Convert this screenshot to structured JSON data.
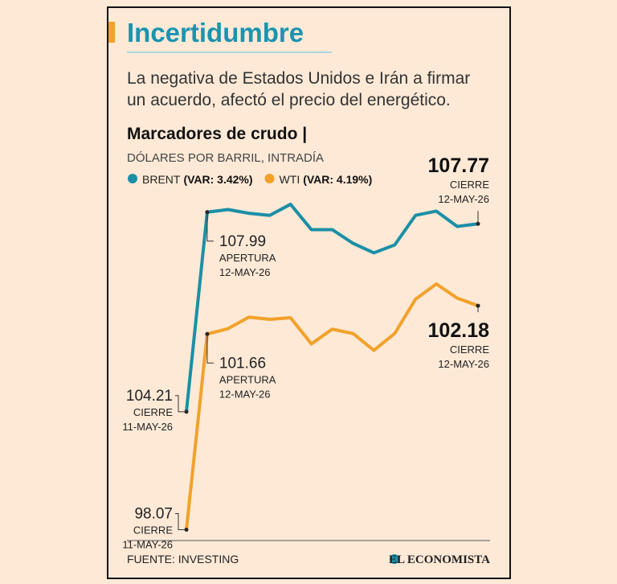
{
  "chart_data": {
    "type": "line",
    "title": "Incertidumbre",
    "subtitle": [
      "La negativa de Estados Unidos e Irán a firmar",
      "un acuerdo, afectó el precio del energético."
    ],
    "chart_title": "Marcadores de crudo |",
    "unit_label": "DÓLARES POR BARRIL, INTRADÍA",
    "categories": [
      null,
      null,
      null,
      null,
      null,
      null,
      null,
      null,
      null,
      null,
      null,
      null,
      null,
      null,
      null
    ],
    "series": [
      {
        "name": "BRENT",
        "var_label": "(VAR: 3.42%)",
        "color": "#1b8fa6",
        "values": [
          104.21,
          107.99,
          108.04,
          107.97,
          107.93,
          108.14,
          107.66,
          107.66,
          107.4,
          107.22,
          107.37,
          107.93,
          108.01,
          107.72,
          107.77
        ],
        "annotations": [
          {
            "note": "CIERRE",
            "date": "11-MAY-26"
          },
          {
            "note": "APERTURA",
            "date": "12-MAY-26"
          },
          {
            "note": "CIERRE",
            "date": "12-MAY-26"
          }
        ]
      },
      {
        "name": "WTI",
        "var_label": "(VAR: 4.19%)",
        "color": "#f2a12a",
        "axis": "y2",
        "values": [
          98.07,
          101.66,
          101.76,
          101.97,
          101.93,
          101.96,
          101.48,
          101.75,
          101.67,
          101.36,
          101.67,
          102.3,
          102.58,
          102.32,
          102.18
        ],
        "annotations": [
          {
            "note": "CIERRE",
            "date": "11-MAY-26"
          },
          {
            "note": "APERTURA",
            "date": "12-MAY-26"
          },
          {
            "note": "CIERRE",
            "date": "12-MAY-26"
          }
        ]
      }
    ],
    "ylim": [
      101.8,
      108.2
    ],
    "y2lim": [
      97.9,
      104.1
    ],
    "source": "FUENTE: INVESTING",
    "brand": "EL ECONOMISTA"
  }
}
